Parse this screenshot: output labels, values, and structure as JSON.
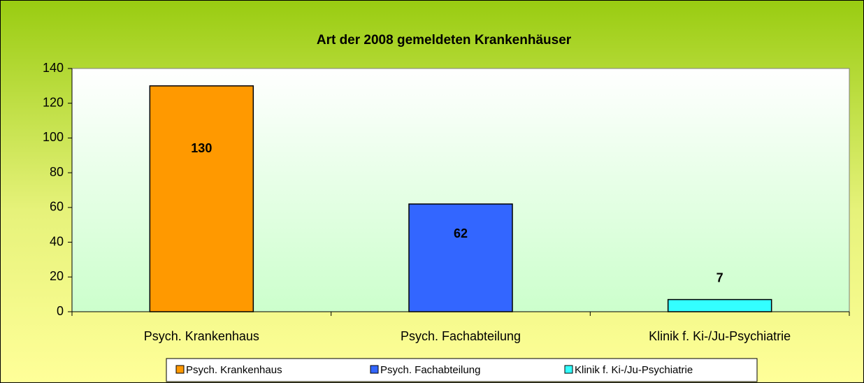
{
  "chart_data": {
    "type": "bar",
    "title": "Art der 2008 gemeldeten Krankenhäuser",
    "categories": [
      "Psych. Krankenhaus",
      "Psych. Fachabteilung",
      "Klinik f. Ki-/Ju-Psychiatrie"
    ],
    "values": [
      130,
      62,
      7
    ],
    "colors": [
      "#ff9900",
      "#3366ff",
      "#33ffff"
    ],
    "ylim": [
      0,
      140
    ],
    "yticks": [
      0,
      20,
      40,
      60,
      80,
      100,
      120,
      140
    ],
    "grid": false,
    "legend": "bottom"
  }
}
